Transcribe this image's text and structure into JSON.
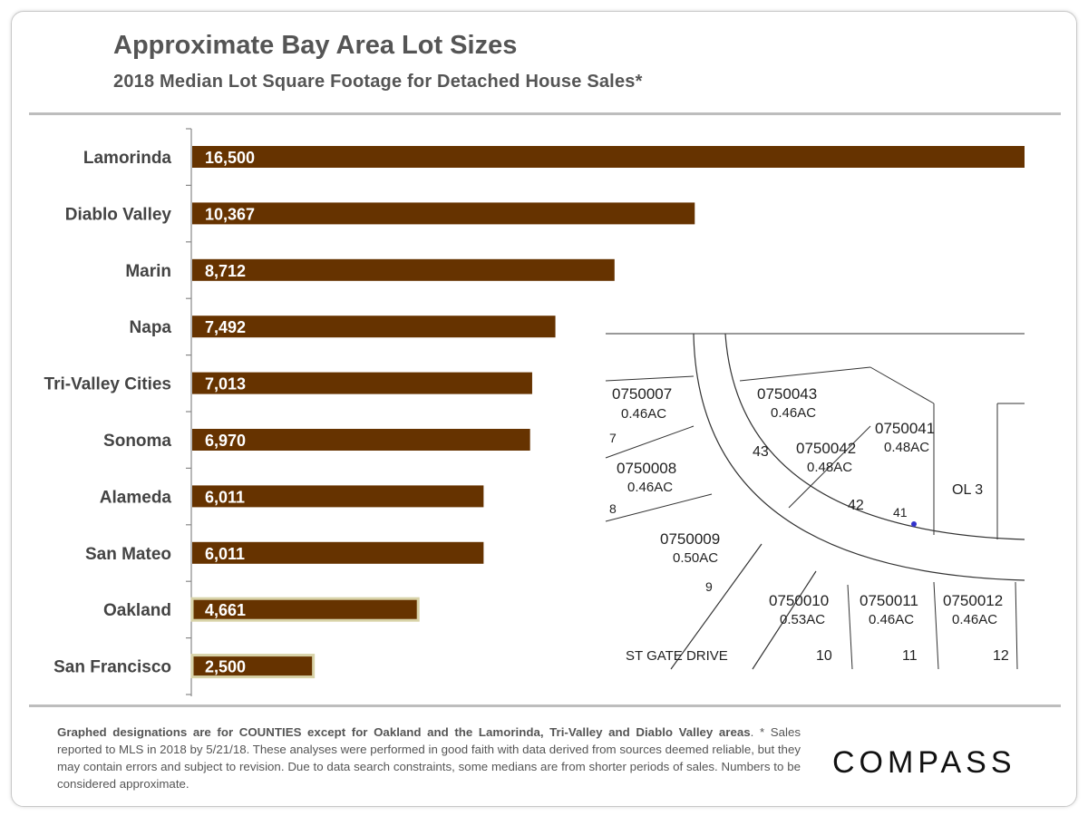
{
  "chart_data": {
    "type": "bar",
    "orientation": "horizontal",
    "title": "Approximate Bay Area Lot Sizes",
    "subtitle": "2018 Median Lot Square Footage for Detached House Sales*",
    "categories": [
      "Lamorinda",
      "Diablo Valley",
      "Marin",
      "Napa",
      "Tri-Valley Cities",
      "Sonoma",
      "Alameda",
      "San Mateo",
      "Oakland",
      "San Francisco"
    ],
    "values": [
      16500,
      10367,
      8712,
      7492,
      7013,
      6970,
      6011,
      6011,
      4661,
      2500
    ],
    "data_labels": [
      "16,500",
      "10,367",
      "8,712",
      "7,492",
      "7,013",
      "6,970",
      "6,011",
      "6,011",
      "4,661",
      "2,500"
    ],
    "highlighted": [
      "Oakland",
      "San Francisco"
    ],
    "xlim": [
      0,
      17170
    ],
    "grid": false,
    "legend": "none",
    "colors": {
      "bar": "#663300",
      "highlight_border": "#d8d3a8",
      "label": "#ffffff"
    }
  },
  "footnote": {
    "bold": "Graphed designations are for COUNTIES except for Oakland and the Lamorinda, Tri-Valley and Diablo Valley areas",
    "text": ". * Sales reported to MLS in 2018 by 5/21/18. These analyses were performed in good faith with data derived from sources deemed reliable, but they may contain errors and subject to revision.  Due to data search constraints, some medians are from shorter periods of sales. Numbers to be considered approximate."
  },
  "logo": "COMPASS",
  "parcel_map": {
    "labels": [
      "0750007",
      "0.46AC",
      "0750043",
      "0.46AC",
      "0750042",
      "0.48AC",
      "0750041",
      "0.48AC",
      "0750008",
      "0.46AC",
      "0750009",
      "0.50AC",
      "0750010",
      "0.53AC",
      "0750011",
      "0.46AC",
      "0750012",
      "0.46AC",
      "OL 3",
      "43",
      "42",
      "41",
      "7",
      "8",
      "9",
      "10",
      "11",
      "12",
      "ST GATE DRIVE"
    ]
  }
}
